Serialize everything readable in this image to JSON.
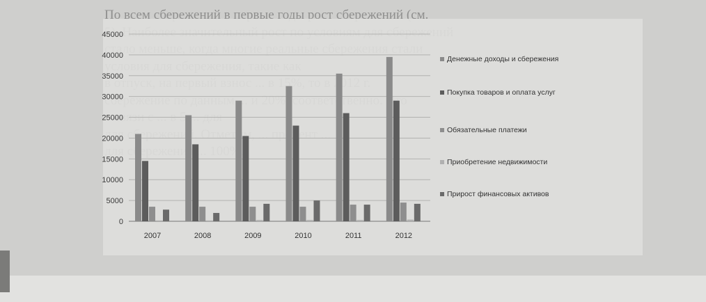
{
  "background_text": [
    "По всем сбережений в первые годы рост сбережений (см.",
    "5). Наиболее значительный рост по условиям для сбережений",
    "стало меньше, когда многие реальные сбережения стали",
    "условия для сбережения, такие как",
    "в отпуск, на первый взнос ... в 15%, то в 2012 г.",
    "сбережение по данным ... и 20%, соответственно. Это",
    "в связи с ... в 5 ... для",
    "для сбережений. Отметим, ... процент ...",
    "для сбережения ... 100%."
  ],
  "colors": {
    "series": [
      "#8a8a8a",
      "#5c5c5c",
      "#8e8e8e",
      "#b0b0b0",
      "#6a6a6a"
    ]
  },
  "chart_data": {
    "type": "bar",
    "title": "",
    "xlabel": "",
    "ylabel": "",
    "ylim": [
      0,
      45000
    ],
    "yticks": [
      "0",
      "5000",
      "10000",
      "15000",
      "20000",
      "25000",
      "30000",
      "35000",
      "40000",
      "45000"
    ],
    "grid": true,
    "legend_position": "right",
    "categories": [
      "2007",
      "2008",
      "2009",
      "2010",
      "2011",
      "2012"
    ],
    "series": [
      {
        "name": "Денежные доходы и сбережения",
        "values": [
          21000,
          25500,
          29000,
          32500,
          35500,
          39500
        ]
      },
      {
        "name": "Покупка товаров и оплата услуг",
        "values": [
          14500,
          18500,
          20500,
          23000,
          26000,
          29000
        ]
      },
      {
        "name": "Обязательные платежи",
        "values": [
          3500,
          3500,
          3500,
          3500,
          4000,
          4500
        ]
      },
      {
        "name": "Приобретение недвижимости",
        "values": [
          200,
          200,
          300,
          300,
          300,
          400
        ]
      },
      {
        "name": "Прирост финансовых активов",
        "values": [
          2800,
          2000,
          4200,
          5000,
          4000,
          4200
        ]
      }
    ]
  }
}
